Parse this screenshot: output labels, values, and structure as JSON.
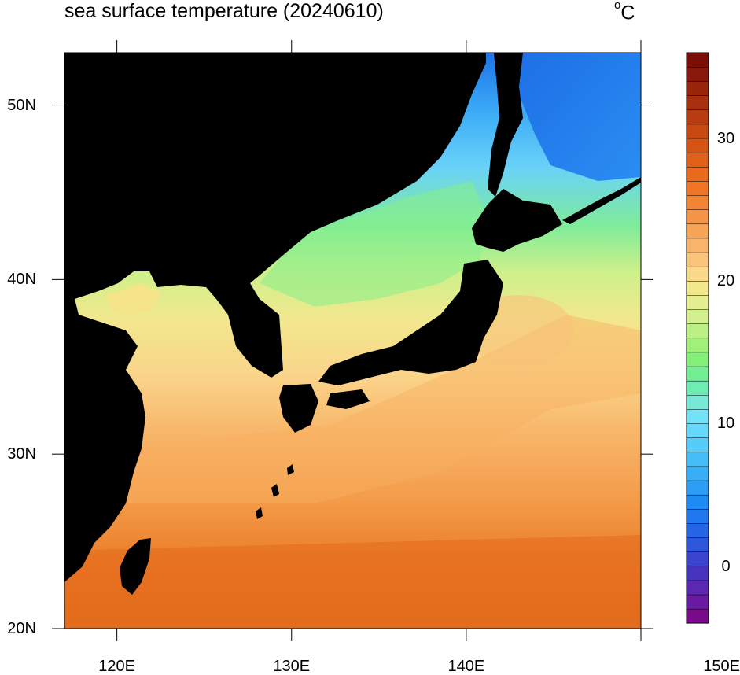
{
  "title": "sea surface temperature (20240610)",
  "unit": {
    "degree_symbol": "o",
    "letter": "C"
  },
  "map": {
    "lon_range": [
      117,
      150
    ],
    "lat_range": [
      20,
      53
    ],
    "land_color": "#000000",
    "lat_ticks": [
      {
        "value": 20,
        "label": "20N"
      },
      {
        "value": 30,
        "label": "30N"
      },
      {
        "value": 40,
        "label": "40N"
      },
      {
        "value": 50,
        "label": "50N"
      }
    ],
    "lon_ticks": [
      {
        "value": 120,
        "label": "120E"
      },
      {
        "value": 130,
        "label": "130E"
      },
      {
        "value": 140,
        "label": "140E"
      },
      {
        "value": 150,
        "label": "150E"
      }
    ]
  },
  "colorbar": {
    "min": -4,
    "max": 36,
    "step": 1,
    "tick_labels": [
      {
        "value": 0,
        "label": "0"
      },
      {
        "value": 10,
        "label": "10"
      },
      {
        "value": 20,
        "label": "20"
      },
      {
        "value": 30,
        "label": "30"
      }
    ],
    "colors": [
      "#7a0a8c",
      "#6a1aa0",
      "#5a28b2",
      "#4634bf",
      "#3a44cc",
      "#2e56da",
      "#2666e6",
      "#1f78ee",
      "#1d8bf3",
      "#2a9df5",
      "#38aef7",
      "#45bef8",
      "#55ccfa",
      "#65d8fb",
      "#72e3f7",
      "#76ead6",
      "#6fecb4",
      "#72ee94",
      "#85f078",
      "#a0f07a",
      "#bcf084",
      "#d3f08e",
      "#e6ee92",
      "#f4e88e",
      "#fad98a",
      "#fac57a",
      "#f8b46a",
      "#f7a455",
      "#f49444",
      "#f28434",
      "#f07424",
      "#e96a1c",
      "#e06018",
      "#d55414",
      "#c84812",
      "#b83c10",
      "#a8300e",
      "#98240c",
      "#88180a",
      "#7c0e08"
    ]
  }
}
